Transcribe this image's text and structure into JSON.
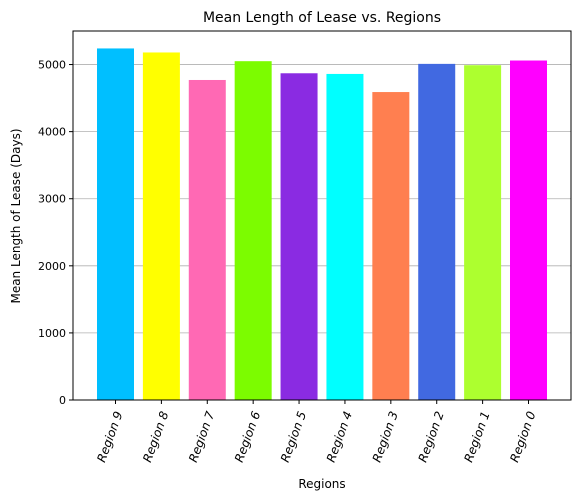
{
  "chart_data": {
    "type": "bar",
    "title": "Mean Length of Lease vs. Regions",
    "xlabel": "Regions",
    "ylabel": "Mean Length of Lease (Days)",
    "categories": [
      "Region 9",
      "Region 8",
      "Region 7",
      "Region 6",
      "Region 5",
      "Region 4",
      "Region 3",
      "Region 2",
      "Region 1",
      "Region 0"
    ],
    "values": [
      5240,
      5180,
      4770,
      5050,
      4870,
      4860,
      4590,
      5010,
      4990,
      5060
    ],
    "colors": [
      "#00BFFF",
      "#FFFF00",
      "#FF69B4",
      "#7CFC00",
      "#8A2BE2",
      "#00FFFF",
      "#FF7F50",
      "#4169E1",
      "#ADFF2F",
      "#FF00FF"
    ],
    "ylim": [
      0,
      5500
    ],
    "yticks": [
      0,
      1000,
      2000,
      3000,
      4000,
      5000
    ],
    "grid": "y",
    "tick_rotation": 70
  }
}
